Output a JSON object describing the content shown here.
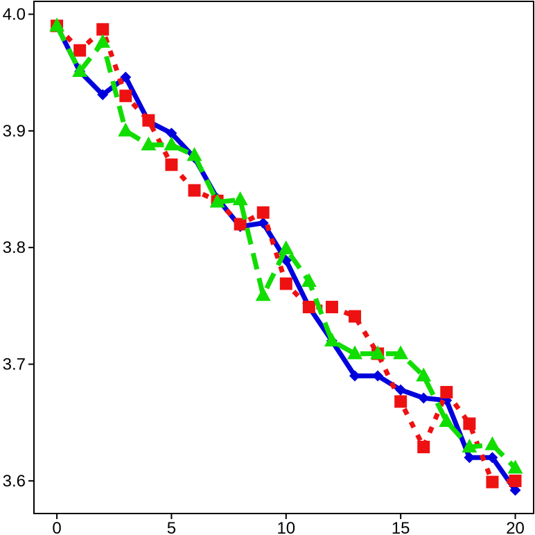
{
  "chart_data": {
    "type": "line",
    "title": "",
    "xlabel": "",
    "ylabel": "",
    "xlim": [
      -1,
      20.8
    ],
    "ylim": [
      3.572,
      4.011
    ],
    "grid": false,
    "x_ticks": [
      {
        "value": 0,
        "label": "0"
      },
      {
        "value": 5,
        "label": "5"
      },
      {
        "value": 10,
        "label": "10"
      },
      {
        "value": 15,
        "label": "15"
      },
      {
        "value": 20,
        "label": "20"
      }
    ],
    "y_ticks": [
      {
        "value": 3.6,
        "label": "3.6"
      },
      {
        "value": 3.7,
        "label": "3.7"
      },
      {
        "value": 3.8,
        "label": "3.8"
      },
      {
        "value": 3.9,
        "label": "3.9"
      },
      {
        "value": 4.0,
        "label": "4.0"
      }
    ],
    "x": [
      0,
      1,
      2,
      3,
      4,
      5,
      6,
      7,
      8,
      9,
      10,
      11,
      12,
      13,
      14,
      15,
      16,
      17,
      18,
      19,
      20
    ],
    "series": [
      {
        "color": "#0000dd",
        "dash": "solid",
        "marker": "diamond",
        "values": [
          3.99,
          3.951,
          3.931,
          3.946,
          3.908,
          3.898,
          3.877,
          3.842,
          3.818,
          3.821,
          3.789,
          3.749,
          3.72,
          3.69,
          3.69,
          3.678,
          3.671,
          3.669,
          3.62,
          3.62,
          3.592
        ]
      },
      {
        "color": "#ee1111",
        "dash": "dotted",
        "marker": "square",
        "values": [
          3.99,
          3.969,
          3.987,
          3.93,
          3.909,
          3.871,
          3.849,
          3.84,
          3.82,
          3.83,
          3.769,
          3.749,
          3.749,
          3.741,
          3.709,
          3.668,
          3.629,
          3.676,
          3.649,
          3.599,
          3.6
        ]
      },
      {
        "color": "#11dd00",
        "dash": "dashed",
        "marker": "triangle",
        "values": [
          3.99,
          3.951,
          3.976,
          3.9,
          3.888,
          3.888,
          3.879,
          3.839,
          3.841,
          3.759,
          3.799,
          3.771,
          3.72,
          3.709,
          3.709,
          3.709,
          3.69,
          3.651,
          3.629,
          3.631,
          3.611
        ]
      }
    ]
  }
}
